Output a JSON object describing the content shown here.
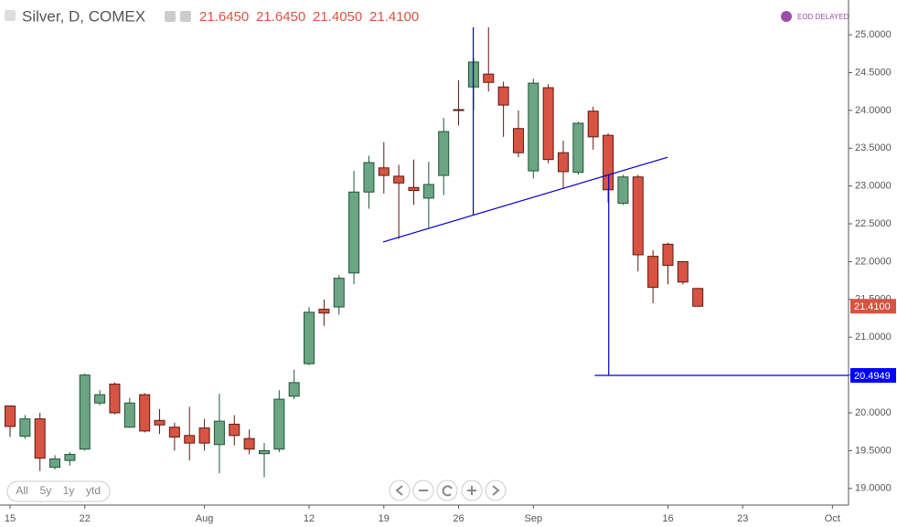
{
  "chart_data": {
    "type": "candlestick",
    "title": "Silver, D, COMEX",
    "header_values": [
      "21.6450",
      "21.6450",
      "21.4050",
      "21.4100"
    ],
    "badge": "EOD DELAYED",
    "range_buttons": [
      "All",
      "5y",
      "1y",
      "ytd"
    ],
    "up_color": "#6ba583",
    "down_color": "#d75442",
    "open": [
      20.09,
      19.69,
      19.92,
      19.28,
      19.37,
      19.52,
      20.13,
      20.38,
      19.81,
      20.24,
      19.9,
      19.81,
      19.7,
      19.8,
      19.58,
      19.85,
      19.66,
      19.46,
      19.52,
      20.22,
      20.65,
      21.37,
      21.4,
      21.85,
      22.92,
      23.24,
      23.13,
      22.98,
      22.84,
      23.14,
      24.01,
      24.31,
      24.48,
      24.31,
      23.76,
      23.2,
      24.3,
      23.44,
      23.18,
      23.99,
      23.67,
      22.77,
      23.12,
      22.07,
      22.23,
      22.0,
      21.645
    ],
    "high": [
      20.1,
      19.97,
      20.0,
      19.44,
      19.48,
      20.52,
      20.3,
      20.4,
      20.2,
      20.26,
      20.05,
      19.87,
      20.08,
      19.92,
      20.25,
      19.97,
      19.78,
      19.6,
      20.3,
      20.57,
      21.4,
      21.5,
      21.82,
      23.2,
      23.4,
      23.58,
      23.28,
      23.35,
      23.32,
      23.9,
      24.4,
      24.7,
      25.1,
      24.38,
      24.0,
      24.42,
      24.35,
      23.6,
      23.85,
      24.05,
      23.7,
      23.15,
      23.15,
      22.15,
      22.25,
      22.0,
      21.645
    ],
    "low": [
      19.68,
      19.66,
      19.23,
      19.25,
      19.3,
      19.5,
      20.1,
      19.98,
      19.8,
      19.74,
      19.72,
      19.5,
      19.37,
      19.5,
      19.2,
      19.57,
      19.45,
      19.15,
      19.48,
      20.18,
      20.63,
      21.15,
      21.3,
      21.7,
      22.7,
      22.9,
      22.3,
      22.75,
      22.45,
      22.88,
      23.8,
      24.0,
      24.25,
      23.65,
      23.38,
      23.1,
      23.3,
      22.97,
      23.15,
      23.48,
      22.78,
      22.75,
      21.87,
      21.45,
      21.7,
      21.7,
      21.405
    ],
    "close": [
      19.82,
      19.92,
      19.4,
      19.39,
      19.45,
      20.5,
      20.24,
      20.0,
      20.13,
      19.76,
      19.84,
      19.68,
      19.6,
      19.6,
      19.89,
      19.7,
      19.52,
      19.5,
      20.18,
      20.4,
      21.33,
      21.32,
      21.78,
      22.92,
      23.31,
      23.14,
      23.04,
      22.94,
      23.02,
      23.72,
      24.0,
      24.64,
      24.37,
      24.07,
      23.44,
      24.36,
      23.35,
      23.19,
      23.83,
      23.65,
      22.95,
      23.12,
      22.09,
      21.66,
      21.95,
      21.73,
      21.41
    ],
    "xlim": [
      -0.673,
      56.08
    ],
    "xticks": [
      {
        "value": 0,
        "label": "15"
      },
      {
        "value": 5,
        "label": "22"
      },
      {
        "value": 13,
        "label": "Aug"
      },
      {
        "value": 20,
        "label": "12"
      },
      {
        "value": 25,
        "label": "19"
      },
      {
        "value": 30,
        "label": "26"
      },
      {
        "value": 35,
        "label": "Sep"
      },
      {
        "value": 44,
        "label": "16"
      },
      {
        "value": 49,
        "label": "23"
      },
      {
        "value": 55,
        "label": "Oct"
      }
    ],
    "ylim": [
      18.78,
      25.46
    ],
    "yticks": [
      {
        "value": 19,
        "label": "19.0000"
      },
      {
        "value": 19.5,
        "label": "19.5000"
      },
      {
        "value": 20,
        "label": "20.0000"
      },
      {
        "value": 20.5,
        "label": "20.5000"
      },
      {
        "value": 21,
        "label": "21.0000"
      },
      {
        "value": 21.5,
        "label": "21.5000"
      },
      {
        "value": 22,
        "label": "22.0000"
      },
      {
        "value": 22.5,
        "label": "22.5000"
      },
      {
        "value": 23,
        "label": "23.0000"
      },
      {
        "value": 23.5,
        "label": "23.5000"
      },
      {
        "value": 24,
        "label": "24.0000"
      },
      {
        "value": 24.5,
        "label": "24.5000"
      },
      {
        "value": 25,
        "label": "25.0000"
      }
    ],
    "grid": false,
    "annotation_color": "#0000cc",
    "annotations": [
      {
        "x": [
          24.95,
          43.98
        ],
        "y": [
          22.26,
          23.38
        ]
      },
      {
        "x": [
          30.98,
          30.98
        ],
        "y": [
          25.1,
          22.62
        ]
      },
      {
        "x": [
          40.04,
          40.04
        ],
        "y": [
          23.15,
          20.4949
        ]
      },
      {
        "x": [
          39.1,
          56.08
        ],
        "y": [
          20.4949,
          20.4949
        ]
      }
    ],
    "price_labels": [
      {
        "value": 21.41,
        "label": "21.4100",
        "color": "#d75442"
      },
      {
        "value": 20.4949,
        "label": "20.4949",
        "color": "#0000ff"
      }
    ]
  }
}
